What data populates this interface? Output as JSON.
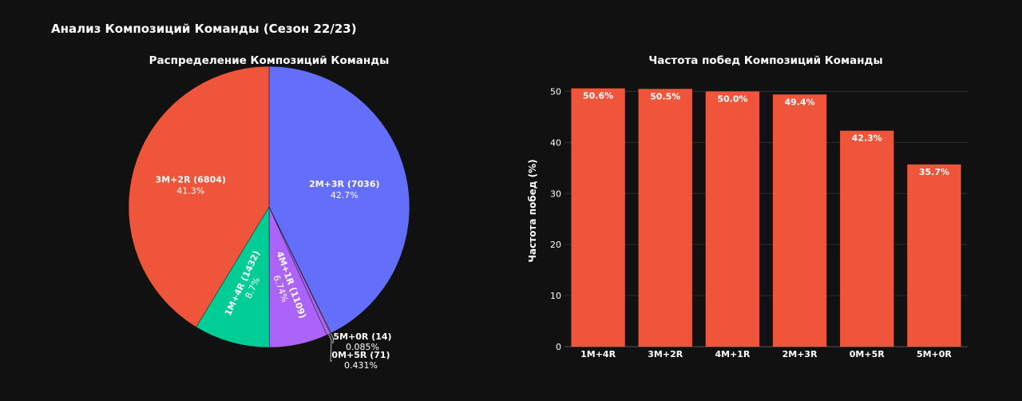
{
  "page": {
    "title": "Анализ Композиций Команды (Сезон 22/23)",
    "background": "#111111"
  },
  "chart_data": [
    {
      "type": "pie",
      "title": "Распределение Композиций Команды",
      "slices": [
        {
          "label": "2M+3R (7036)",
          "value": 7036,
          "percent": "42.7%",
          "color": "#636efa"
        },
        {
          "label": "5M+0R (14)",
          "value": 14,
          "percent": "0.085%",
          "color": "#ffa15a"
        },
        {
          "label": "0M+5R (71)",
          "value": 71,
          "percent": "0.431%",
          "color": "#ab63fa"
        },
        {
          "label": "4M+1R (1109)",
          "value": 1109,
          "percent": "6.74%",
          "color": "#ab63fa"
        },
        {
          "label": "1M+4R (1432)",
          "value": 1432,
          "percent": "8.7%",
          "color": "#00cc96"
        },
        {
          "label": "3M+2R (6804)",
          "value": 6804,
          "percent": "41.3%",
          "color": "#ef553b"
        }
      ]
    },
    {
      "type": "bar",
      "title": "Частота побед Композиций Команды",
      "xlabel": "",
      "ylabel": "Частота побед (%)",
      "categories": [
        "1M+4R",
        "3M+2R",
        "4M+1R",
        "2M+3R",
        "0M+5R",
        "5M+0R"
      ],
      "values": [
        50.6,
        50.5,
        50.0,
        49.4,
        42.3,
        35.7
      ],
      "value_labels": [
        "50.6%",
        "50.5%",
        "50.0%",
        "49.4%",
        "42.3%",
        "35.7%"
      ],
      "yticks": [
        0,
        10,
        20,
        30,
        40,
        50
      ],
      "ytick_labels": [
        "0",
        "10",
        "20",
        "30",
        "40",
        "50"
      ],
      "ylim": [
        0,
        53.2
      ],
      "bar_color": "#ef553b",
      "grid": true
    }
  ]
}
